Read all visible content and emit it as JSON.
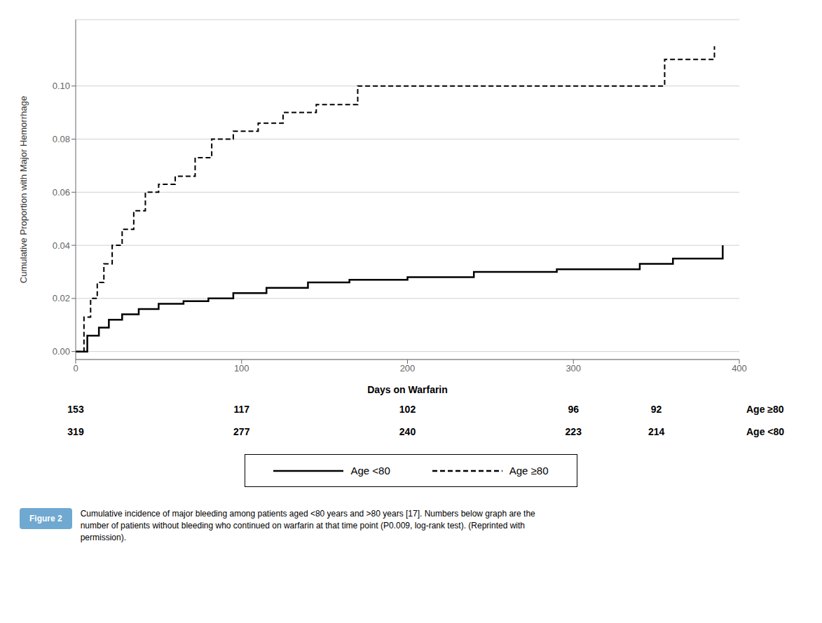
{
  "chart_data": {
    "type": "step",
    "xlabel": "Days on Warfarin",
    "ylabel": "Cumulative Proportion with Major Hemorrhage",
    "xlim": [
      0,
      400
    ],
    "ylim": [
      -0.003,
      0.125
    ],
    "xticks": [
      0,
      100,
      200,
      300,
      400
    ],
    "yticks": [
      {
        "value": 0.0,
        "label": "0.00"
      },
      {
        "value": 0.02,
        "label": "0.02"
      },
      {
        "value": 0.04,
        "label": "0.04"
      },
      {
        "value": 0.06,
        "label": "0.06"
      },
      {
        "value": 0.08,
        "label": "0.08"
      },
      {
        "value": 0.1,
        "label": "0.10"
      }
    ],
    "grid": true,
    "legend": "bottom",
    "series": [
      {
        "name": "Age <80",
        "color": "#000000",
        "line_style": "solid",
        "x": [
          0,
          7,
          14,
          20,
          28,
          38,
          50,
          65,
          80,
          95,
          115,
          140,
          165,
          200,
          240,
          290,
          340,
          360,
          390
        ],
        "values": [
          0.0,
          0.006,
          0.009,
          0.012,
          0.014,
          0.016,
          0.018,
          0.019,
          0.02,
          0.022,
          0.024,
          0.026,
          0.027,
          0.028,
          0.03,
          0.031,
          0.033,
          0.035,
          0.04
        ]
      },
      {
        "name": "Age ≥80",
        "color": "#000000",
        "line_style": "dashed",
        "x": [
          0,
          5,
          9,
          13,
          17,
          22,
          28,
          35,
          42,
          50,
          60,
          72,
          82,
          95,
          110,
          125,
          145,
          170,
          200,
          250,
          285,
          355,
          385
        ],
        "values": [
          0.0,
          0.013,
          0.02,
          0.026,
          0.033,
          0.04,
          0.046,
          0.053,
          0.06,
          0.063,
          0.066,
          0.073,
          0.08,
          0.083,
          0.086,
          0.09,
          0.093,
          0.1,
          0.1,
          0.1,
          0.1,
          0.11,
          0.115
        ]
      }
    ],
    "at_risk": {
      "x": [
        0,
        100,
        200,
        300,
        350
      ],
      "rows": [
        {
          "name": "Age ≥80",
          "values": [
            153,
            117,
            102,
            96,
            92
          ]
        },
        {
          "name": "Age <80",
          "values": [
            319,
            277,
            240,
            223,
            214
          ]
        }
      ]
    },
    "caption": {
      "label": "Figure 2",
      "text": "Cumulative incidence of major bleeding among patients aged <80 years and >80 years [17]. Numbers below graph are the\nnumber of patients without bleeding who continued on warfarin at that time point (P0.009, log-rank test). (Reprinted with\npermission)."
    }
  }
}
